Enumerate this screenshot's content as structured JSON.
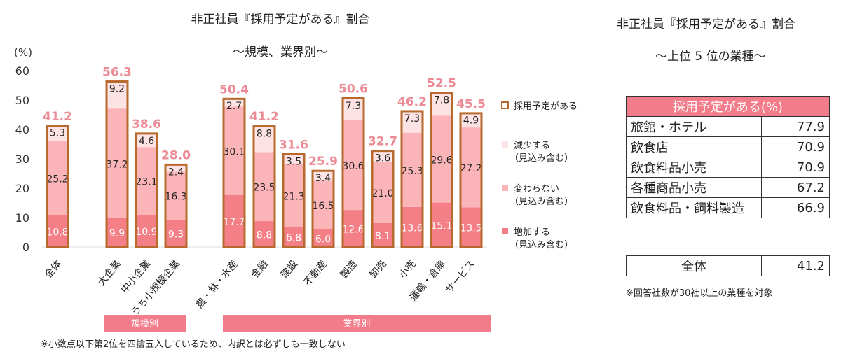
{
  "chart_data": {
    "type": "bar",
    "stacked": true,
    "title": "非正社員『採用予定がある』割合",
    "subtitle": "～規模、業界別～",
    "ylabel": "(%)",
    "ylim": [
      0,
      60
    ],
    "yticks": [
      0,
      10,
      20,
      30,
      40,
      50,
      60
    ],
    "categories": [
      "全体",
      "大企業",
      "中小企業",
      "うち小規模企業",
      "農・林・水産",
      "金融",
      "建設",
      "不動産",
      "製造",
      "卸売",
      "小売",
      "運輸・倉庫",
      "サービス"
    ],
    "series": [
      {
        "name": "増加する（見込み含む）",
        "color": "#f47f86",
        "values": [
          10.8,
          9.9,
          10.9,
          9.3,
          17.7,
          8.8,
          6.8,
          6.0,
          12.6,
          8.1,
          13.6,
          15.1,
          13.5
        ]
      },
      {
        "name": "変わらない（見込み含む）",
        "color": "#fbb5b9",
        "values": [
          25.2,
          37.2,
          23.1,
          16.3,
          30.1,
          23.5,
          21.3,
          16.5,
          30.6,
          21.0,
          25.3,
          29.6,
          27.2
        ]
      },
      {
        "name": "減少する（見込み含む）",
        "color": "#fde3e3",
        "values": [
          5.3,
          9.2,
          4.6,
          2.4,
          2.7,
          8.8,
          3.5,
          3.4,
          7.3,
          3.6,
          7.3,
          7.8,
          4.9
        ]
      }
    ],
    "totals_series": {
      "name": "採用予定がある",
      "values": [
        41.2,
        56.3,
        38.6,
        28.0,
        50.4,
        41.2,
        31.6,
        25.9,
        50.6,
        32.7,
        46.2,
        52.5,
        45.5
      ]
    },
    "groups": [
      "規模別",
      "業界別"
    ],
    "note": "※小数点以下第2位を四捨五入しているため、内訳とは必ずしも一致しない",
    "legend_position": "right",
    "legend": [
      {
        "l1": "採用予定がある",
        "l2": ""
      },
      {
        "l1": "減少する",
        "l2": "（見込み含む）"
      },
      {
        "l1": "変わらない",
        "l2": "（見込み含む）"
      },
      {
        "l1": "増加する",
        "l2": "（見込み含む）"
      }
    ]
  },
  "ranking": {
    "title": "非正社員『採用予定がある』割合",
    "subtitle": "～上位 5 位の業種～",
    "header": "採用予定がある(%)",
    "rows": [
      {
        "name": "旅館・ホテル",
        "value": "77.9"
      },
      {
        "name": "飲食店",
        "value": "70.9"
      },
      {
        "name": "飲食料品小売",
        "value": "70.9"
      },
      {
        "name": "各種商品小売",
        "value": "67.2"
      },
      {
        "name": "飲食料品・飼料製造",
        "value": "66.9"
      }
    ],
    "total": {
      "name": "全体",
      "value": "41.2"
    },
    "note": "※回答社数が30社以上の業種を対象"
  }
}
